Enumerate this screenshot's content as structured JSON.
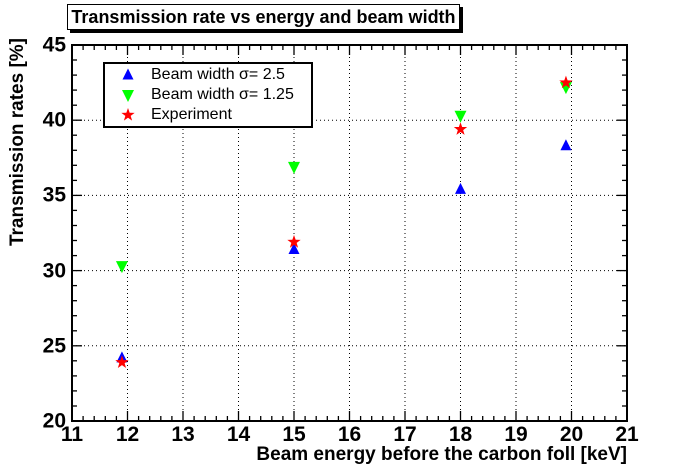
{
  "chart_data": {
    "type": "scatter",
    "title": "Transmission rate vs energy and beam width",
    "xlabel": "Beam energy before the carbon foll [keV]",
    "ylabel": "Transmission rates [%]",
    "xlim": [
      11,
      21
    ],
    "ylim": [
      20,
      45
    ],
    "x_major_ticks": [
      11,
      12,
      13,
      14,
      15,
      16,
      17,
      18,
      19,
      20,
      21
    ],
    "x_minor_step": 0.2,
    "y_major_ticks": [
      20,
      25,
      30,
      35,
      40,
      45
    ],
    "y_minor_step": 1,
    "grid": true,
    "grid_style": "dotted",
    "legend_position": "top-left",
    "series": [
      {
        "name": "Beam width σ= 2.5",
        "marker": "triangle-up",
        "color": "#0000ff",
        "points": [
          [
            11.9,
            24.2
          ],
          [
            15.0,
            31.4
          ],
          [
            18.0,
            35.4
          ],
          [
            19.9,
            38.3
          ]
        ]
      },
      {
        "name": "Beam width σ= 1.25",
        "marker": "triangle-down",
        "color": "#00ff00",
        "points": [
          [
            11.9,
            30.3
          ],
          [
            15.0,
            36.9
          ],
          [
            18.0,
            40.3
          ],
          [
            19.9,
            42.2
          ]
        ]
      },
      {
        "name": "Experiment",
        "marker": "star",
        "color": "#ff0000",
        "points": [
          [
            11.9,
            23.9
          ],
          [
            15.0,
            31.9
          ],
          [
            18.0,
            39.4
          ],
          [
            19.9,
            42.5
          ]
        ]
      }
    ],
    "frame_color": "#000000",
    "background_color": "#ffffff"
  }
}
